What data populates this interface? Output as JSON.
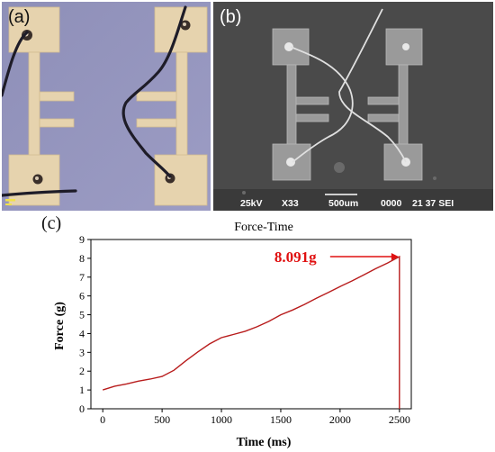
{
  "panels": {
    "a": {
      "label": "(a)"
    },
    "b": {
      "label": "(b)",
      "sem_info": {
        "voltage": "25kV",
        "magnification": "X33",
        "scale": "500um",
        "code": "0000",
        "session": "21 37 SEI"
      }
    },
    "c": {
      "label": "(c)"
    }
  },
  "chart_data": {
    "type": "line",
    "title": "Force-Time",
    "xlabel": "Time (ms)",
    "ylabel": "Force (g)",
    "xlim": [
      -100,
      2600
    ],
    "ylim": [
      0,
      9
    ],
    "xticks": [
      0,
      500,
      1000,
      1500,
      2000,
      2500
    ],
    "yticks": [
      0,
      1,
      2,
      3,
      4,
      5,
      6,
      7,
      8,
      9
    ],
    "annotation": {
      "text": "8.091g",
      "x": 2500,
      "y": 8.091,
      "color": "#e01010"
    },
    "line_color": "#b81c1c",
    "series": [
      {
        "x": [
          0,
          100,
          200,
          300,
          400,
          500,
          600,
          700,
          800,
          900,
          1000,
          1100,
          1200,
          1300,
          1400,
          1500,
          1600,
          1700,
          1800,
          1900,
          2000,
          2100,
          2200,
          2300,
          2400,
          2500,
          2500
        ],
        "y": [
          1.0,
          1.2,
          1.32,
          1.47,
          1.58,
          1.72,
          2.05,
          2.55,
          3.02,
          3.45,
          3.78,
          3.95,
          4.12,
          4.36,
          4.65,
          5.0,
          5.25,
          5.55,
          5.88,
          6.18,
          6.5,
          6.8,
          7.12,
          7.45,
          7.75,
          8.091,
          0
        ]
      }
    ]
  }
}
